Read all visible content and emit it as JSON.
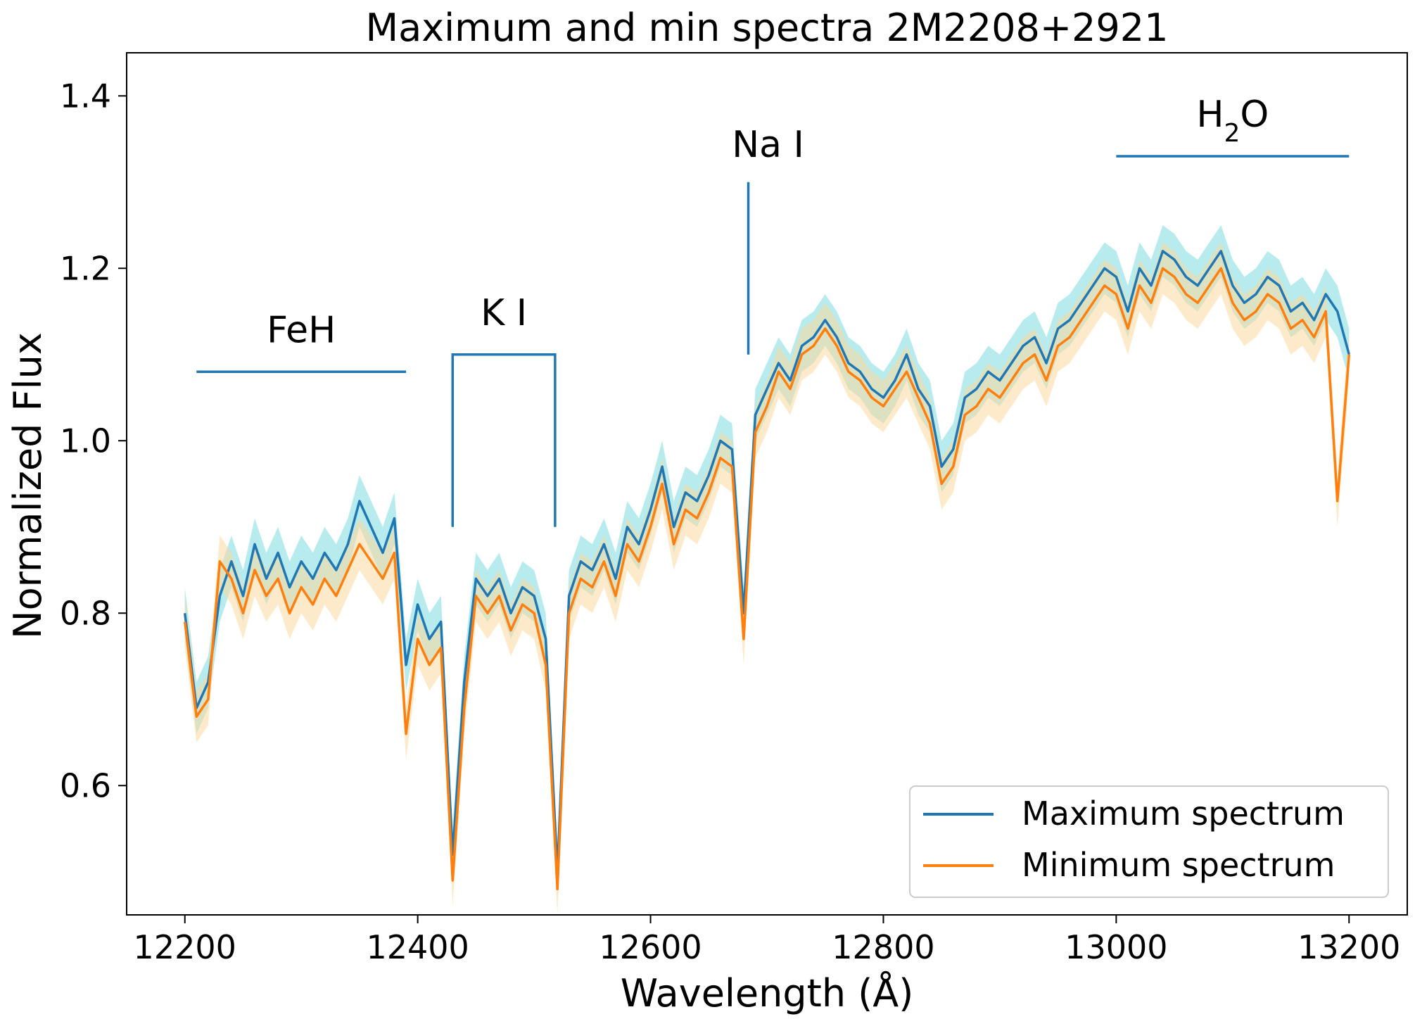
{
  "chart_data": {
    "type": "line",
    "title": "Maximum and min spectra 2M2208+2921",
    "xlabel": "Wavelength (Å)",
    "ylabel": "Normalized Flux",
    "xlim": [
      12150,
      13250
    ],
    "ylim": [
      0.45,
      1.45
    ],
    "xticks": [
      12200,
      12400,
      12600,
      12800,
      13000,
      13200
    ],
    "xtick_labels": [
      "12200",
      "12400",
      "12600",
      "12800",
      "13000",
      "13200"
    ],
    "yticks": [
      0.6,
      0.8,
      1.0,
      1.2,
      1.4
    ],
    "ytick_labels": [
      "0.6",
      "0.8",
      "1.0",
      "1.2",
      "1.4"
    ],
    "legend_position": "lower-right",
    "series": [
      {
        "name": "Maximum spectrum",
        "color": "#1f77b4",
        "band_color": "#5fd3d8",
        "x": [
          12200,
          12210,
          12220,
          12230,
          12240,
          12250,
          12260,
          12270,
          12280,
          12290,
          12300,
          12310,
          12320,
          12330,
          12340,
          12350,
          12360,
          12370,
          12380,
          12390,
          12400,
          12410,
          12420,
          12430,
          12440,
          12450,
          12460,
          12470,
          12480,
          12490,
          12500,
          12510,
          12520,
          12530,
          12540,
          12550,
          12560,
          12570,
          12580,
          12590,
          12600,
          12610,
          12620,
          12630,
          12640,
          12650,
          12660,
          12670,
          12680,
          12690,
          12700,
          12710,
          12720,
          12730,
          12740,
          12750,
          12760,
          12770,
          12780,
          12790,
          12800,
          12810,
          12820,
          12830,
          12840,
          12850,
          12860,
          12870,
          12880,
          12890,
          12900,
          12910,
          12920,
          12930,
          12940,
          12950,
          12960,
          12970,
          12980,
          12990,
          13000,
          13010,
          13020,
          13030,
          13040,
          13050,
          13060,
          13070,
          13080,
          13090,
          13100,
          13110,
          13120,
          13130,
          13140,
          13150,
          13160,
          13170,
          13180,
          13190,
          13200
        ],
        "y": [
          0.8,
          0.69,
          0.72,
          0.82,
          0.86,
          0.82,
          0.88,
          0.84,
          0.87,
          0.83,
          0.86,
          0.84,
          0.87,
          0.85,
          0.88,
          0.93,
          0.9,
          0.87,
          0.91,
          0.74,
          0.81,
          0.77,
          0.79,
          0.52,
          0.72,
          0.84,
          0.82,
          0.84,
          0.8,
          0.83,
          0.82,
          0.77,
          0.5,
          0.82,
          0.86,
          0.85,
          0.88,
          0.84,
          0.9,
          0.88,
          0.92,
          0.97,
          0.9,
          0.94,
          0.93,
          0.96,
          1.0,
          0.99,
          0.8,
          1.03,
          1.06,
          1.09,
          1.07,
          1.11,
          1.12,
          1.14,
          1.12,
          1.09,
          1.08,
          1.06,
          1.05,
          1.07,
          1.1,
          1.06,
          1.04,
          0.97,
          0.99,
          1.05,
          1.06,
          1.08,
          1.07,
          1.09,
          1.11,
          1.12,
          1.09,
          1.13,
          1.14,
          1.16,
          1.18,
          1.2,
          1.19,
          1.15,
          1.2,
          1.18,
          1.22,
          1.21,
          1.19,
          1.18,
          1.2,
          1.22,
          1.18,
          1.16,
          1.17,
          1.19,
          1.18,
          1.15,
          1.16,
          1.14,
          1.17,
          1.15,
          1.1
        ]
      },
      {
        "name": "Minimum spectrum",
        "color": "#ff7f0e",
        "band_color": "#fcd99e",
        "x": [
          12200,
          12210,
          12220,
          12230,
          12240,
          12250,
          12260,
          12270,
          12280,
          12290,
          12300,
          12310,
          12320,
          12330,
          12340,
          12350,
          12360,
          12370,
          12380,
          12390,
          12400,
          12410,
          12420,
          12430,
          12440,
          12450,
          12460,
          12470,
          12480,
          12490,
          12500,
          12510,
          12520,
          12530,
          12540,
          12550,
          12560,
          12570,
          12580,
          12590,
          12600,
          12610,
          12620,
          12630,
          12640,
          12650,
          12660,
          12670,
          12680,
          12690,
          12700,
          12710,
          12720,
          12730,
          12740,
          12750,
          12760,
          12770,
          12780,
          12790,
          12800,
          12810,
          12820,
          12830,
          12840,
          12850,
          12860,
          12870,
          12880,
          12890,
          12900,
          12910,
          12920,
          12930,
          12940,
          12950,
          12960,
          12970,
          12980,
          12990,
          13000,
          13010,
          13020,
          13030,
          13040,
          13050,
          13060,
          13070,
          13080,
          13090,
          13100,
          13110,
          13120,
          13130,
          13140,
          13150,
          13160,
          13170,
          13180,
          13190,
          13200
        ],
        "y": [
          0.79,
          0.68,
          0.7,
          0.86,
          0.84,
          0.8,
          0.85,
          0.82,
          0.84,
          0.8,
          0.83,
          0.81,
          0.84,
          0.82,
          0.85,
          0.88,
          0.86,
          0.84,
          0.87,
          0.66,
          0.77,
          0.74,
          0.76,
          0.49,
          0.69,
          0.82,
          0.8,
          0.82,
          0.78,
          0.81,
          0.8,
          0.74,
          0.48,
          0.8,
          0.84,
          0.83,
          0.86,
          0.82,
          0.88,
          0.86,
          0.9,
          0.95,
          0.88,
          0.92,
          0.91,
          0.94,
          0.98,
          0.97,
          0.77,
          1.01,
          1.04,
          1.08,
          1.06,
          1.1,
          1.11,
          1.13,
          1.11,
          1.08,
          1.07,
          1.05,
          1.04,
          1.06,
          1.08,
          1.05,
          1.02,
          0.95,
          0.97,
          1.03,
          1.04,
          1.06,
          1.05,
          1.07,
          1.09,
          1.1,
          1.07,
          1.11,
          1.12,
          1.14,
          1.16,
          1.18,
          1.17,
          1.13,
          1.18,
          1.16,
          1.2,
          1.19,
          1.17,
          1.16,
          1.18,
          1.2,
          1.16,
          1.14,
          1.15,
          1.17,
          1.16,
          1.13,
          1.14,
          1.12,
          1.15,
          0.93,
          1.1
        ]
      }
    ],
    "annotations": [
      {
        "id": "feh",
        "label": "FeH",
        "style": "hline",
        "x_start": 12210,
        "x_end": 12390,
        "y": 1.08,
        "color": "#1f77b4"
      },
      {
        "id": "ki",
        "label": "K I",
        "style": "bracket",
        "x_start": 12430,
        "x_end": 12518,
        "y_top": 1.1,
        "y_bottom": 0.9,
        "color": "#1f77b4"
      },
      {
        "id": "nai",
        "label": "Na I",
        "style": "vline",
        "x": 12684,
        "y_top": 1.3,
        "y_bottom": 1.1,
        "color": "#1f77b4"
      },
      {
        "id": "h2o",
        "label": "H",
        "label_sub": "2",
        "label_suffix": "O",
        "style": "hline",
        "x_start": 13000,
        "x_end": 13200,
        "y": 1.33,
        "color": "#1f77b4"
      }
    ]
  }
}
